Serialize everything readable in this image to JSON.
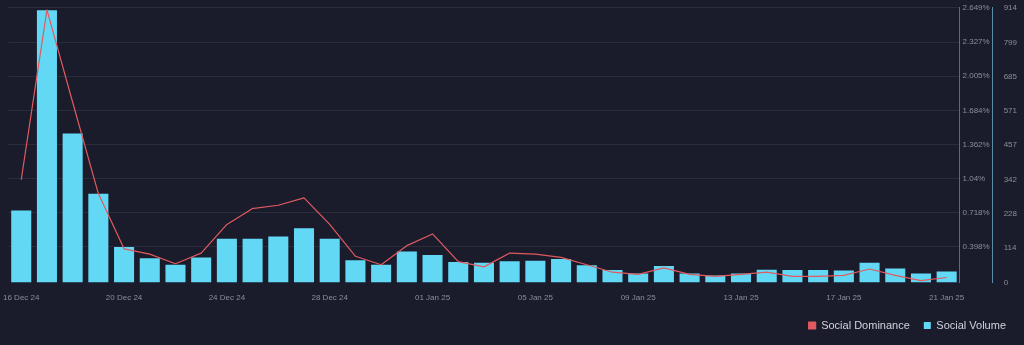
{
  "chart_data": {
    "type": "bar",
    "categories": [
      "16 Dec 24",
      null,
      null,
      null,
      "20 Dec 24",
      null,
      null,
      null,
      "24 Dec 24",
      null,
      null,
      null,
      "28 Dec 24",
      null,
      null,
      null,
      "01 Jan 25",
      null,
      null,
      null,
      "05 Jan 25",
      null,
      null,
      null,
      "09 Jan 25",
      null,
      null,
      null,
      "13 Jan 25",
      null,
      null,
      null,
      "17 Jan 25",
      null,
      null,
      null,
      "21 Jan 25"
    ],
    "series": [
      {
        "name": "Social Dominance",
        "type": "line",
        "axis": "y",
        "color": "#e05a5f",
        "values": [
          1.03,
          2.63,
          1.76,
          0.9,
          0.38,
          0.33,
          0.24,
          0.34,
          0.61,
          0.76,
          0.79,
          0.86,
          0.61,
          0.31,
          0.23,
          0.41,
          0.52,
          0.26,
          0.21,
          0.34,
          0.33,
          0.3,
          0.23,
          0.16,
          0.14,
          0.2,
          0.14,
          0.12,
          0.14,
          0.16,
          0.12,
          0.12,
          0.13,
          0.19,
          0.13,
          0.08,
          0.11
        ]
      },
      {
        "name": "Social Volume",
        "axis": "y2",
        "color": "#62d8f5",
        "values": [
          239,
          906,
          496,
          295,
          118,
          80,
          59,
          83,
          145,
          145,
          153,
          180,
          145,
          74,
          59,
          103,
          91,
          68,
          65,
          70,
          72,
          78,
          57,
          41,
          30,
          55,
          30,
          23,
          30,
          42,
          41,
          41,
          40,
          65,
          46,
          30,
          36
        ]
      }
    ],
    "ylim": [
      0.064,
      2.649
    ],
    "yticks": [
      {
        "value": 0.398,
        "label": "0.398%"
      },
      {
        "value": 0.718,
        "label": "0.718%"
      },
      {
        "value": 1.04,
        "label": "1.04%"
      },
      {
        "value": 1.362,
        "label": "1.362%"
      },
      {
        "value": 1.684,
        "label": "1.684%"
      },
      {
        "value": 2.005,
        "label": "2.005%"
      },
      {
        "value": 2.327,
        "label": "2.327%"
      },
      {
        "value": 2.649,
        "label": "2.649%"
      }
    ],
    "y2lim": [
      0,
      914
    ],
    "y2ticks": [
      0,
      114,
      228,
      342,
      457,
      571,
      685,
      799,
      914
    ],
    "grid": "y",
    "legend": "bottom",
    "marker": "none"
  }
}
